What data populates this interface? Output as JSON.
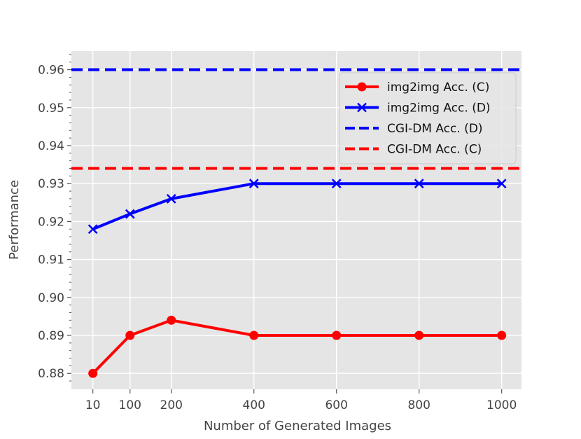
{
  "chart_data": {
    "type": "line",
    "title": "",
    "xlabel": "Number of Generated Images",
    "ylabel": "Performance",
    "x": [
      10,
      100,
      200,
      400,
      600,
      800,
      1000
    ],
    "xticks": [
      10,
      100,
      200,
      400,
      600,
      800,
      1000
    ],
    "xtick_labels": [
      "10",
      "100",
      "200",
      "400",
      "600",
      "800",
      "1000"
    ],
    "xlim": [
      -42,
      1048
    ],
    "ylim": [
      0.8758,
      0.9649
    ],
    "yticks": [
      0.88,
      0.89,
      0.9,
      0.91,
      0.92,
      0.93,
      0.94,
      0.95,
      0.96
    ],
    "ytick_labels": [
      "0.88",
      "0.89",
      "0.90",
      "0.91",
      "0.92",
      "0.93",
      "0.94",
      "0.95",
      "0.96"
    ],
    "grid": true,
    "legend_position": "top-right",
    "series": [
      {
        "name": "img2img Acc. (C)",
        "color": "#ff0000",
        "marker": "circle",
        "linestyle": "solid",
        "values": [
          0.88,
          0.89,
          0.894,
          0.89,
          0.89,
          0.89,
          0.89
        ]
      },
      {
        "name": "img2img Acc. (D)",
        "color": "#0000ff",
        "marker": "x",
        "linestyle": "solid",
        "values": [
          0.918,
          0.922,
          0.926,
          0.93,
          0.93,
          0.93,
          0.93
        ]
      }
    ],
    "hlines": [
      {
        "name": "CGI-DM Acc. (D)",
        "color": "#0000ff",
        "linestyle": "dashed",
        "value": 0.96
      },
      {
        "name": "CGI-DM Acc. (C)",
        "color": "#ff0000",
        "linestyle": "dashed",
        "value": 0.934
      }
    ]
  }
}
